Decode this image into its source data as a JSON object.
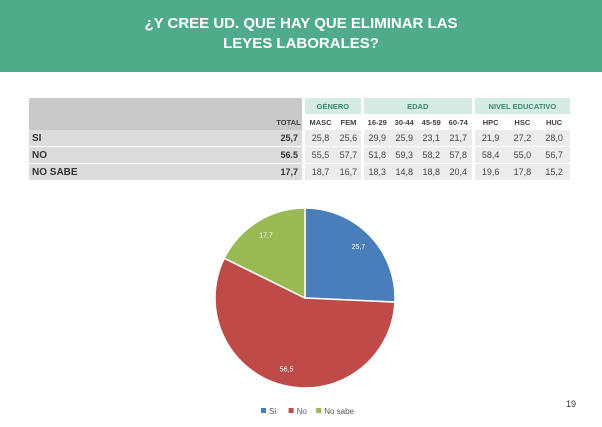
{
  "title_lines": [
    "¿Y CREE UD. QUE HAY QUE ELIMINAR LAS",
    "LEYES LABORALES?"
  ],
  "table": {
    "total_header": "TOTAL",
    "groups": [
      {
        "label": "GÉNERO",
        "columns": [
          "MASC",
          "FEM"
        ]
      },
      {
        "label": "EDAD",
        "columns": [
          "16-29",
          "30-44",
          "45-59",
          "60-74"
        ]
      },
      {
        "label": "NIVEL EDUCATIVO",
        "columns": [
          "HPC",
          "HSC",
          "HUC"
        ]
      }
    ],
    "rows": [
      {
        "label": "SI",
        "total": "25,7",
        "values": [
          "25,8",
          "25,6",
          "29,9",
          "25,9",
          "23,1",
          "21,7",
          "21,9",
          "27,2",
          "28,0"
        ]
      },
      {
        "label": "NO",
        "total": "56.5",
        "values": [
          "55,5",
          "57,7",
          "51,8",
          "59,3",
          "58,2",
          "57,8",
          "58,4",
          "55,0",
          "56,7"
        ]
      },
      {
        "label": "NO SABE",
        "total": "17,7",
        "values": [
          "18,7",
          "16,7",
          "18,3",
          "14,8",
          "18,8",
          "20,4",
          "19,6",
          "17,8",
          "15,2"
        ]
      }
    ]
  },
  "chart_data": {
    "type": "pie",
    "categories": [
      "Si",
      "No",
      "No sabe"
    ],
    "values": [
      25.7,
      56.5,
      17.7
    ],
    "labels": [
      "25,7",
      "56,5",
      "17,7"
    ],
    "colors": [
      "#4a7ebb",
      "#be4b48",
      "#98b954"
    ],
    "legend": "bottom"
  },
  "page_number": "19"
}
